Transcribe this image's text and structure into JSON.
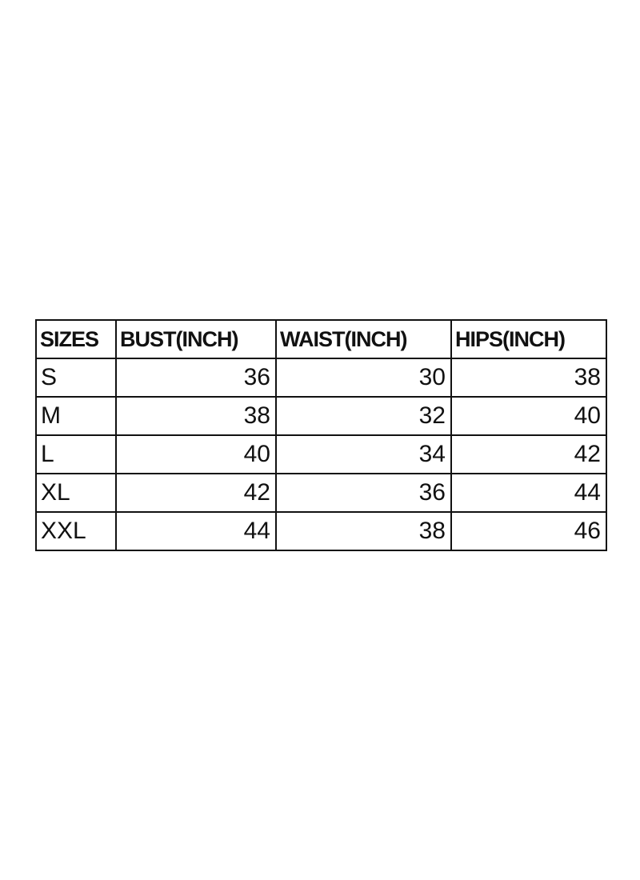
{
  "table": {
    "columns": [
      "SIZES",
      "BUST(INCH)",
      "WAIST(INCH)",
      "HIPS(INCH)"
    ],
    "rows": [
      [
        "S",
        36,
        30,
        38
      ],
      [
        "M",
        38,
        32,
        40
      ],
      [
        "L",
        40,
        34,
        42
      ],
      [
        "XL",
        42,
        36,
        44
      ],
      [
        "XXL",
        44,
        38,
        46
      ]
    ]
  }
}
